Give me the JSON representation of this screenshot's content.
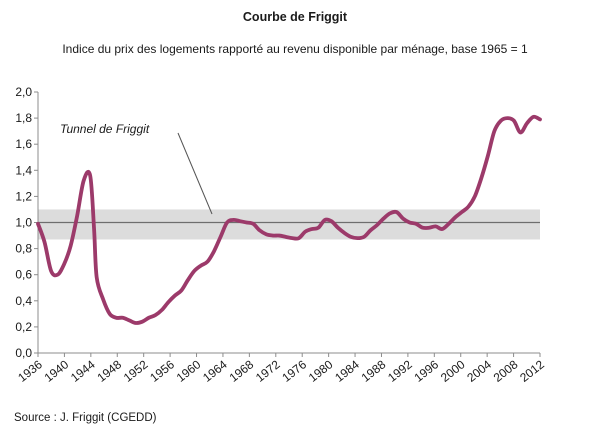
{
  "chart_data": {
    "type": "line",
    "title": "Courbe de Friggit",
    "subtitle": "Indice du prix des logements rapporté au revenu disponible par ménage,  base 1965 = 1",
    "source": "Source : J. Friggit (CGEDD)",
    "xlabel": "",
    "ylabel": "",
    "xlim": [
      1936,
      2013
    ],
    "ylim": [
      0,
      2
    ],
    "y_ticks": [
      "0,0",
      "0,2",
      "0,4",
      "0,6",
      "0,8",
      "1,0",
      "1,2",
      "1,4",
      "1,6",
      "1,8",
      "2,0"
    ],
    "x_ticks": [
      "1936",
      "1940",
      "1944",
      "1948",
      "1952",
      "1956",
      "1960",
      "1964",
      "1968",
      "1972",
      "1976",
      "1980",
      "1984",
      "1988",
      "1992",
      "1996",
      "2000",
      "2004",
      "2008",
      "2012"
    ],
    "grid": false,
    "annotation": {
      "text": "Tunnel de Friggit",
      "band": [
        0.87,
        1.1
      ],
      "reference": 1.0
    },
    "colors": {
      "line": "#9c3a6a",
      "band": "#dcdcdc",
      "reference": "#6e6e6e",
      "axis": "#8c8c8c"
    },
    "series": [
      {
        "x": [
          1936,
          1937,
          1938,
          1939,
          1940,
          1941,
          1942,
          1943,
          1944,
          1944.6,
          1945,
          1946,
          1947,
          1948,
          1949,
          1950,
          1951,
          1952,
          1953,
          1954,
          1955,
          1956,
          1957,
          1958,
          1959,
          1960,
          1961,
          1962,
          1963,
          1964,
          1965,
          1966,
          1967,
          1968,
          1969,
          1970,
          1971,
          1972,
          1973,
          1974,
          1975,
          1976,
          1977,
          1978,
          1979,
          1980,
          1981,
          1982,
          1983,
          1984,
          1985,
          1986,
          1987,
          1988,
          1989,
          1990,
          1991,
          1992,
          1993,
          1994,
          1995,
          1996,
          1997,
          1998,
          1999,
          2000,
          2001,
          2002,
          2003,
          2004,
          2005,
          2006,
          2007,
          2008,
          2009,
          2010,
          2011,
          2012,
          2013
        ],
        "values": [
          0.99,
          0.85,
          0.63,
          0.6,
          0.68,
          0.82,
          1.05,
          1.32,
          1.36,
          0.95,
          0.58,
          0.41,
          0.3,
          0.27,
          0.27,
          0.25,
          0.23,
          0.24,
          0.27,
          0.29,
          0.33,
          0.39,
          0.44,
          0.48,
          0.56,
          0.63,
          0.67,
          0.7,
          0.78,
          0.89,
          1.0,
          1.02,
          1.01,
          1.0,
          0.99,
          0.94,
          0.91,
          0.9,
          0.9,
          0.89,
          0.88,
          0.88,
          0.93,
          0.95,
          0.96,
          1.02,
          1.01,
          0.96,
          0.92,
          0.89,
          0.88,
          0.89,
          0.94,
          0.98,
          1.03,
          1.07,
          1.08,
          1.03,
          1.0,
          0.99,
          0.96,
          0.96,
          0.97,
          0.95,
          0.99,
          1.04,
          1.08,
          1.12,
          1.2,
          1.34,
          1.51,
          1.7,
          1.78,
          1.8,
          1.78,
          1.69,
          1.76,
          1.81,
          1.79
        ]
      }
    ]
  }
}
